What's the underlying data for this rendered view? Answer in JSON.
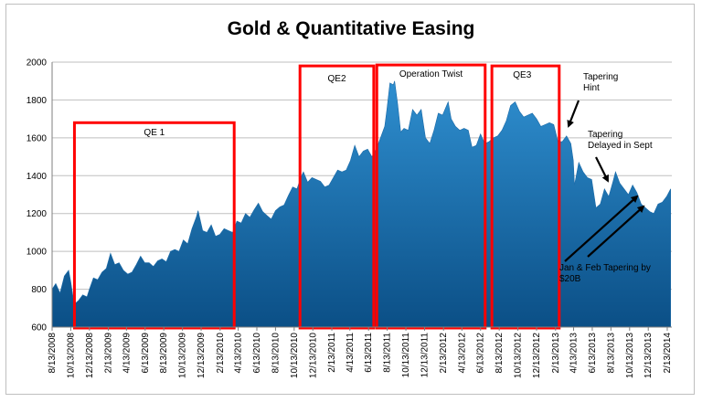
{
  "chart_data": {
    "type": "area",
    "title": "Gold & Quantitative Easing",
    "xlabel": "",
    "ylabel": "",
    "ylim": [
      600,
      2000
    ],
    "yticks": [
      600,
      800,
      1000,
      1200,
      1400,
      1600,
      1800,
      2000
    ],
    "grid": true,
    "xticks": [
      "8/13/2008",
      "10/13/2008",
      "12/13/2008",
      "2/13/2009",
      "4/13/2009",
      "6/13/2009",
      "8/13/2009",
      "10/13/2009",
      "12/13/2009",
      "2/13/2010",
      "4/13/2010",
      "6/13/2010",
      "8/13/2010",
      "10/13/2010",
      "12/13/2010",
      "2/13/2011",
      "4/13/2011",
      "6/13/2011",
      "8/13/2011",
      "10/13/2011",
      "12/13/2011",
      "2/13/2012",
      "4/13/2012",
      "6/13/2012",
      "8/13/2012",
      "10/13/2012",
      "12/13/2012",
      "2/13/2013",
      "4/13/2013",
      "6/13/2013",
      "8/13/2013",
      "10/13/2013",
      "12/13/2013",
      "2/13/2014"
    ],
    "series": [
      {
        "color": "#1f77b4",
        "points": [
          [
            "2008-08-13",
            800
          ],
          [
            "2008-08-25",
            830
          ],
          [
            "2008-09-08",
            780
          ],
          [
            "2008-09-22",
            870
          ],
          [
            "2008-10-06",
            900
          ],
          [
            "2008-10-13",
            840
          ],
          [
            "2008-10-24",
            720
          ],
          [
            "2008-11-07",
            740
          ],
          [
            "2008-11-21",
            770
          ],
          [
            "2008-12-05",
            760
          ],
          [
            "2008-12-13",
            800
          ],
          [
            "2008-12-26",
            860
          ],
          [
            "2009-01-09",
            850
          ],
          [
            "2009-01-23",
            890
          ],
          [
            "2009-02-06",
            910
          ],
          [
            "2009-02-20",
            990
          ],
          [
            "2009-03-06",
            930
          ],
          [
            "2009-03-20",
            940
          ],
          [
            "2009-04-03",
            900
          ],
          [
            "2009-04-17",
            880
          ],
          [
            "2009-05-01",
            890
          ],
          [
            "2009-05-15",
            930
          ],
          [
            "2009-05-29",
            975
          ],
          [
            "2009-06-12",
            940
          ],
          [
            "2009-06-26",
            940
          ],
          [
            "2009-07-10",
            920
          ],
          [
            "2009-07-24",
            950
          ],
          [
            "2009-08-07",
            960
          ],
          [
            "2009-08-21",
            945
          ],
          [
            "2009-09-04",
            1000
          ],
          [
            "2009-09-18",
            1010
          ],
          [
            "2009-10-02",
            1000
          ],
          [
            "2009-10-16",
            1060
          ],
          [
            "2009-10-30",
            1040
          ],
          [
            "2009-11-13",
            1120
          ],
          [
            "2009-11-27",
            1180
          ],
          [
            "2009-12-03",
            1215
          ],
          [
            "2009-12-18",
            1110
          ],
          [
            "2010-01-01",
            1100
          ],
          [
            "2010-01-15",
            1140
          ],
          [
            "2010-01-29",
            1080
          ],
          [
            "2010-02-12",
            1090
          ],
          [
            "2010-02-26",
            1120
          ],
          [
            "2010-03-12",
            1110
          ],
          [
            "2010-03-26",
            1100
          ],
          [
            "2010-04-09",
            1160
          ],
          [
            "2010-04-23",
            1150
          ],
          [
            "2010-05-07",
            1200
          ],
          [
            "2010-05-21",
            1180
          ],
          [
            "2010-06-04",
            1220
          ],
          [
            "2010-06-18",
            1255
          ],
          [
            "2010-07-02",
            1210
          ],
          [
            "2010-07-16",
            1190
          ],
          [
            "2010-07-30",
            1170
          ],
          [
            "2010-08-13",
            1215
          ],
          [
            "2010-08-27",
            1235
          ],
          [
            "2010-09-10",
            1245
          ],
          [
            "2010-09-24",
            1295
          ],
          [
            "2010-10-08",
            1340
          ],
          [
            "2010-10-22",
            1330
          ],
          [
            "2010-11-05",
            1395
          ],
          [
            "2010-11-12",
            1420
          ],
          [
            "2010-11-26",
            1365
          ],
          [
            "2010-12-10",
            1390
          ],
          [
            "2010-12-24",
            1380
          ],
          [
            "2011-01-07",
            1370
          ],
          [
            "2011-01-21",
            1340
          ],
          [
            "2011-02-04",
            1350
          ],
          [
            "2011-02-18",
            1390
          ],
          [
            "2011-03-04",
            1430
          ],
          [
            "2011-03-18",
            1420
          ],
          [
            "2011-04-01",
            1430
          ],
          [
            "2011-04-15",
            1480
          ],
          [
            "2011-04-29",
            1560
          ],
          [
            "2011-05-13",
            1500
          ],
          [
            "2011-05-27",
            1530
          ],
          [
            "2011-06-10",
            1540
          ],
          [
            "2011-06-24",
            1500
          ],
          [
            "2011-07-08",
            1540
          ],
          [
            "2011-07-22",
            1600
          ],
          [
            "2011-08-05",
            1660
          ],
          [
            "2011-08-12",
            1750
          ],
          [
            "2011-08-22",
            1890
          ],
          [
            "2011-09-02",
            1880
          ],
          [
            "2011-09-06",
            1900
          ],
          [
            "2011-09-16",
            1780
          ],
          [
            "2011-09-26",
            1630
          ],
          [
            "2011-10-07",
            1650
          ],
          [
            "2011-10-21",
            1640
          ],
          [
            "2011-11-04",
            1750
          ],
          [
            "2011-11-18",
            1720
          ],
          [
            "2011-12-02",
            1750
          ],
          [
            "2011-12-16",
            1600
          ],
          [
            "2011-12-30",
            1570
          ],
          [
            "2012-01-13",
            1640
          ],
          [
            "2012-01-27",
            1730
          ],
          [
            "2012-02-10",
            1720
          ],
          [
            "2012-02-28",
            1790
          ],
          [
            "2012-03-09",
            1700
          ],
          [
            "2012-03-23",
            1660
          ],
          [
            "2012-04-06",
            1640
          ],
          [
            "2012-04-20",
            1650
          ],
          [
            "2012-05-04",
            1640
          ],
          [
            "2012-05-16",
            1550
          ],
          [
            "2012-05-30",
            1560
          ],
          [
            "2012-06-13",
            1620
          ],
          [
            "2012-06-27",
            1570
          ],
          [
            "2012-07-11",
            1580
          ],
          [
            "2012-07-25",
            1600
          ],
          [
            "2012-08-08",
            1610
          ],
          [
            "2012-08-22",
            1640
          ],
          [
            "2012-09-05",
            1690
          ],
          [
            "2012-09-19",
            1770
          ],
          [
            "2012-10-04",
            1790
          ],
          [
            "2012-10-18",
            1740
          ],
          [
            "2012-11-01",
            1710
          ],
          [
            "2012-11-15",
            1720
          ],
          [
            "2012-11-29",
            1730
          ],
          [
            "2012-12-13",
            1700
          ],
          [
            "2012-12-27",
            1660
          ],
          [
            "2013-01-10",
            1670
          ],
          [
            "2013-01-24",
            1680
          ],
          [
            "2013-02-07",
            1670
          ],
          [
            "2013-02-21",
            1580
          ],
          [
            "2013-03-07",
            1580
          ],
          [
            "2013-03-21",
            1610
          ],
          [
            "2013-04-04",
            1570
          ],
          [
            "2013-04-12",
            1480
          ],
          [
            "2013-04-16",
            1350
          ],
          [
            "2013-04-30",
            1470
          ],
          [
            "2013-05-14",
            1420
          ],
          [
            "2013-05-28",
            1390
          ],
          [
            "2013-06-11",
            1380
          ],
          [
            "2013-06-25",
            1230
          ],
          [
            "2013-07-09",
            1250
          ],
          [
            "2013-07-23",
            1330
          ],
          [
            "2013-08-06",
            1290
          ],
          [
            "2013-08-20",
            1370
          ],
          [
            "2013-08-28",
            1420
          ],
          [
            "2013-09-11",
            1360
          ],
          [
            "2013-09-25",
            1330
          ],
          [
            "2013-10-09",
            1300
          ],
          [
            "2013-10-23",
            1350
          ],
          [
            "2013-11-06",
            1310
          ],
          [
            "2013-11-20",
            1250
          ],
          [
            "2013-12-04",
            1230
          ],
          [
            "2013-12-18",
            1210
          ],
          [
            "2013-12-31",
            1200
          ],
          [
            "2014-01-14",
            1250
          ],
          [
            "2014-01-28",
            1260
          ],
          [
            "2014-02-11",
            1290
          ],
          [
            "2014-02-24",
            1330
          ]
        ]
      }
    ],
    "boxes": [
      {
        "label": "QE 1",
        "start": "2008-10-25",
        "end": "2010-03-31",
        "top": 1680
      },
      {
        "label": "QE2",
        "start": "2010-11-01",
        "end": "2011-06-30",
        "top": 1980
      },
      {
        "label": "Operation Twist",
        "start": "2011-07-10",
        "end": "2012-06-28",
        "top": 1985
      },
      {
        "label": "QE3",
        "start": "2012-07-20",
        "end": "2013-02-25",
        "top": 1980
      }
    ],
    "box_color": "#ff0000",
    "annotations": [
      {
        "lines": [
          "Tapering",
          "Hint"
        ]
      },
      {
        "lines": [
          "Tapering",
          "Delayed in Sept"
        ]
      },
      {
        "lines": [
          "Jan & Feb Tapering by",
          "$20B"
        ]
      }
    ]
  }
}
